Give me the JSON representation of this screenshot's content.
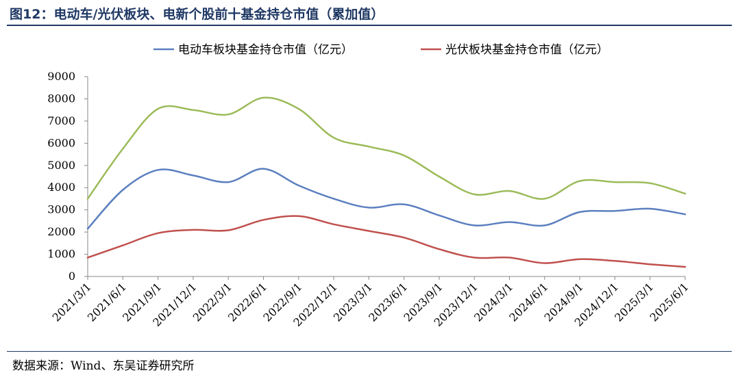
{
  "figure": {
    "title": "图12：电动车/光伏板块、电新个股前十基金持仓市值（累加值）",
    "source": "数据来源：Wind、东吴证券研究所"
  },
  "chart_data": {
    "type": "line",
    "x": [
      "2021/3/1",
      "2021/6/1",
      "2021/9/1",
      "2021/12/1",
      "2022/3/1",
      "2022/6/1",
      "2022/9/1",
      "2022/12/1",
      "2023/3/1",
      "2023/6/1",
      "2023/9/1",
      "2023/12/1",
      "2024/3/1",
      "2024/6/1",
      "2024/9/1",
      "2024/12/1",
      "2025/3/1",
      "2025/6/1"
    ],
    "ylim": [
      0,
      9000
    ],
    "yticks": [
      0,
      1000,
      2000,
      3000,
      4000,
      5000,
      6000,
      7000,
      8000,
      9000
    ],
    "grid": false,
    "legend_position": "top",
    "series": [
      {
        "name": "电动车板块基金持仓市值（亿元）",
        "color": "#5b7fbf",
        "values": [
          2150,
          3900,
          4800,
          4550,
          4250,
          4850,
          4100,
          3500,
          3100,
          3250,
          2750,
          2300,
          2450,
          2300,
          2900,
          2950,
          3050,
          2800
        ]
      },
      {
        "name": "光伏板块基金持仓市值（亿元）",
        "color": "#c0504d",
        "values": [
          850,
          1400,
          1950,
          2100,
          2080,
          2550,
          2720,
          2350,
          2050,
          1750,
          1230,
          850,
          850,
          600,
          780,
          700,
          550,
          430
        ]
      },
      {
        "name": "",
        "color": "#9bbb59",
        "values": [
          3500,
          5750,
          7550,
          7500,
          7300,
          8050,
          7550,
          6250,
          5850,
          5450,
          4500,
          3700,
          3850,
          3500,
          4300,
          4250,
          4200,
          3730
        ]
      }
    ]
  }
}
